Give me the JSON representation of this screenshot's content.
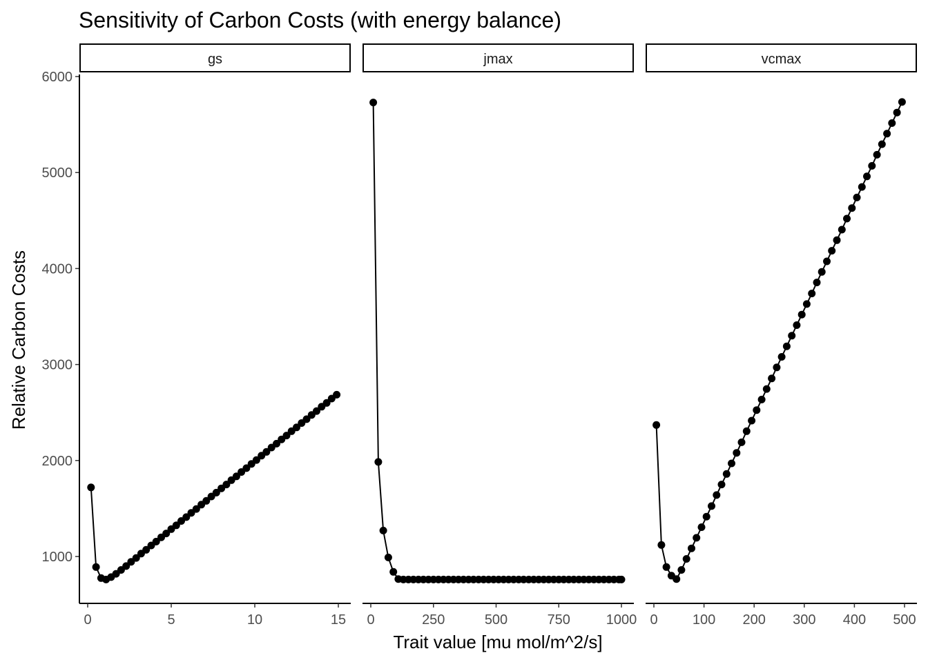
{
  "chart_data": {
    "type": "line",
    "title": "Sensitivity of Carbon Costs (with energy balance)",
    "xlabel": "Trait value [mu mol/m^2/s]",
    "ylabel": "Relative Carbon Costs",
    "ylim": [
      500,
      6000
    ],
    "yticks": [
      1000,
      2000,
      3000,
      4000,
      5000,
      6000
    ],
    "grid": false,
    "facets": [
      {
        "name": "gs",
        "xlim": [
          0,
          15
        ],
        "xticks": [
          0,
          5,
          10,
          15
        ],
        "x": [
          0.2,
          0.5,
          0.8,
          1.1,
          1.4,
          1.7,
          2.0,
          2.3,
          2.6,
          2.9,
          3.2,
          3.5,
          3.8,
          4.1,
          4.4,
          4.7,
          5.0,
          5.3,
          5.6,
          5.9,
          6.2,
          6.5,
          6.8,
          7.1,
          7.4,
          7.7,
          8.0,
          8.3,
          8.6,
          8.9,
          9.2,
          9.5,
          9.8,
          10.1,
          10.4,
          10.7,
          11.0,
          11.3,
          11.6,
          11.9,
          12.2,
          12.5,
          12.8,
          13.1,
          13.4,
          13.7,
          14.0,
          14.3,
          14.6,
          14.9
        ],
        "y": [
          1720,
          890,
          775,
          760,
          785,
          820,
          860,
          900,
          945,
          985,
          1030,
          1070,
          1115,
          1155,
          1200,
          1240,
          1285,
          1325,
          1370,
          1410,
          1455,
          1495,
          1540,
          1580,
          1625,
          1665,
          1710,
          1750,
          1795,
          1835,
          1880,
          1920,
          1965,
          2005,
          2050,
          2090,
          2135,
          2175,
          2220,
          2260,
          2305,
          2345,
          2390,
          2430,
          2475,
          2515,
          2560,
          2600,
          2645,
          2685
        ]
      },
      {
        "name": "jmax",
        "xlim": [
          0,
          1000
        ],
        "xticks": [
          0,
          250,
          500,
          750,
          1000
        ],
        "x": [
          10,
          30,
          50,
          70,
          90,
          110,
          130,
          150,
          170,
          190,
          210,
          230,
          250,
          270,
          290,
          310,
          330,
          350,
          370,
          390,
          410,
          430,
          450,
          470,
          490,
          510,
          530,
          550,
          570,
          590,
          610,
          630,
          650,
          670,
          690,
          710,
          730,
          750,
          770,
          790,
          810,
          830,
          850,
          870,
          890,
          910,
          930,
          950,
          970,
          990,
          1000
        ],
        "y": [
          5730,
          1985,
          1270,
          990,
          840,
          765,
          760,
          760,
          760,
          760,
          760,
          760,
          760,
          760,
          760,
          760,
          760,
          760,
          760,
          760,
          760,
          760,
          760,
          760,
          760,
          760,
          760,
          760,
          760,
          760,
          760,
          760,
          760,
          760,
          760,
          760,
          760,
          760,
          760,
          760,
          760,
          760,
          760,
          760,
          760,
          760,
          760,
          760,
          760,
          760,
          760
        ]
      },
      {
        "name": "vcmax",
        "xlim": [
          0,
          500
        ],
        "xticks": [
          0,
          100,
          200,
          300,
          400,
          500
        ],
        "x": [
          5,
          15,
          25,
          35,
          45,
          55,
          65,
          75,
          85,
          95,
          105,
          115,
          125,
          135,
          145,
          155,
          165,
          175,
          185,
          195,
          205,
          215,
          225,
          235,
          245,
          255,
          265,
          275,
          285,
          295,
          305,
          315,
          325,
          335,
          345,
          355,
          365,
          375,
          385,
          395,
          405,
          415,
          425,
          435,
          445,
          455,
          465,
          475,
          485,
          495
        ],
        "y": [
          2370,
          1120,
          890,
          800,
          765,
          860,
          975,
          1085,
          1195,
          1305,
          1415,
          1525,
          1640,
          1750,
          1860,
          1970,
          2080,
          2190,
          2305,
          2415,
          2525,
          2635,
          2745,
          2855,
          2970,
          3080,
          3190,
          3300,
          3410,
          3520,
          3630,
          3740,
          3855,
          3965,
          4075,
          4185,
          4295,
          4405,
          4520,
          4630,
          4740,
          4850,
          4960,
          5070,
          5185,
          5295,
          5405,
          5515,
          5625,
          5735
        ]
      }
    ]
  }
}
